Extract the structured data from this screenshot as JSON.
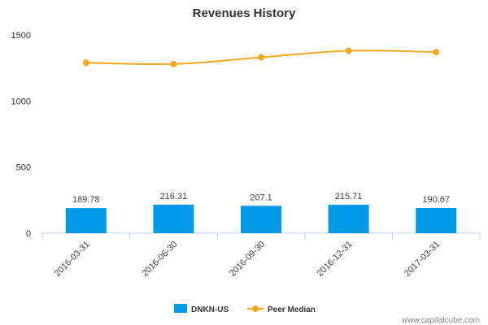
{
  "chart_data": {
    "type": "bar",
    "title": "Revenues History",
    "categories": [
      "2016-03-31",
      "2016-06-30",
      "2016-09-30",
      "2016-12-31",
      "2017-03-31"
    ],
    "series": [
      {
        "name": "DNKN-US",
        "type": "bar",
        "color": "#0099e6",
        "values": [
          189.78,
          216.31,
          207.1,
          215.71,
          190.67
        ],
        "labels": [
          "189.78",
          "216.31",
          "207.1",
          "215.71",
          "190.67"
        ]
      },
      {
        "name": "Peer Median",
        "type": "line",
        "color": "#f5a623",
        "values": [
          1290,
          1280,
          1330,
          1380,
          1370
        ]
      }
    ],
    "yticks": [
      "0",
      "500",
      "1000",
      "1500"
    ],
    "ylim": [
      0,
      1500
    ],
    "legend": "bottom-center",
    "grid": false
  },
  "credit": "www.capitalcube.com"
}
